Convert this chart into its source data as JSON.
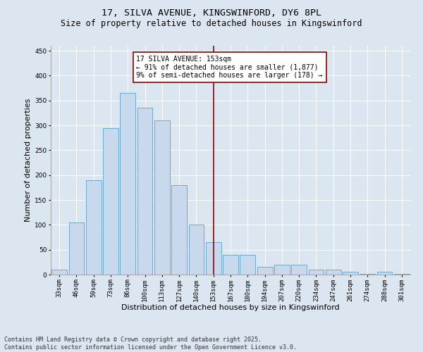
{
  "title_line1": "17, SILVA AVENUE, KINGSWINFORD, DY6 8PL",
  "title_line2": "Size of property relative to detached houses in Kingswinford",
  "xlabel": "Distribution of detached houses by size in Kingswinford",
  "ylabel": "Number of detached properties",
  "categories": [
    "33sqm",
    "46sqm",
    "59sqm",
    "73sqm",
    "86sqm",
    "100sqm",
    "113sqm",
    "127sqm",
    "140sqm",
    "153sqm",
    "167sqm",
    "180sqm",
    "194sqm",
    "207sqm",
    "220sqm",
    "234sqm",
    "247sqm",
    "261sqm",
    "274sqm",
    "288sqm",
    "301sqm"
  ],
  "values": [
    10,
    105,
    190,
    295,
    365,
    335,
    310,
    180,
    100,
    65,
    40,
    40,
    15,
    20,
    20,
    10,
    10,
    5,
    2,
    5,
    2
  ],
  "bar_color": "#c8d9ee",
  "bar_edge_color": "#6aaad4",
  "highlight_index": 9,
  "highlight_line_color": "#8b0000",
  "annotation_text": "17 SILVA AVENUE: 153sqm\n← 91% of detached houses are smaller (1,877)\n9% of semi-detached houses are larger (178) →",
  "annotation_box_color": "#ffffff",
  "annotation_box_edge": "#8b0000",
  "ylim": [
    0,
    460
  ],
  "yticks": [
    0,
    50,
    100,
    150,
    200,
    250,
    300,
    350,
    400,
    450
  ],
  "background_color": "#dce6f0",
  "grid_color": "#ffffff",
  "footer_line1": "Contains HM Land Registry data © Crown copyright and database right 2025.",
  "footer_line2": "Contains public sector information licensed under the Open Government Licence v3.0.",
  "title_fontsize": 9.5,
  "subtitle_fontsize": 8.5,
  "axis_label_fontsize": 8,
  "tick_fontsize": 6.5,
  "annotation_fontsize": 7,
  "footer_fontsize": 6
}
